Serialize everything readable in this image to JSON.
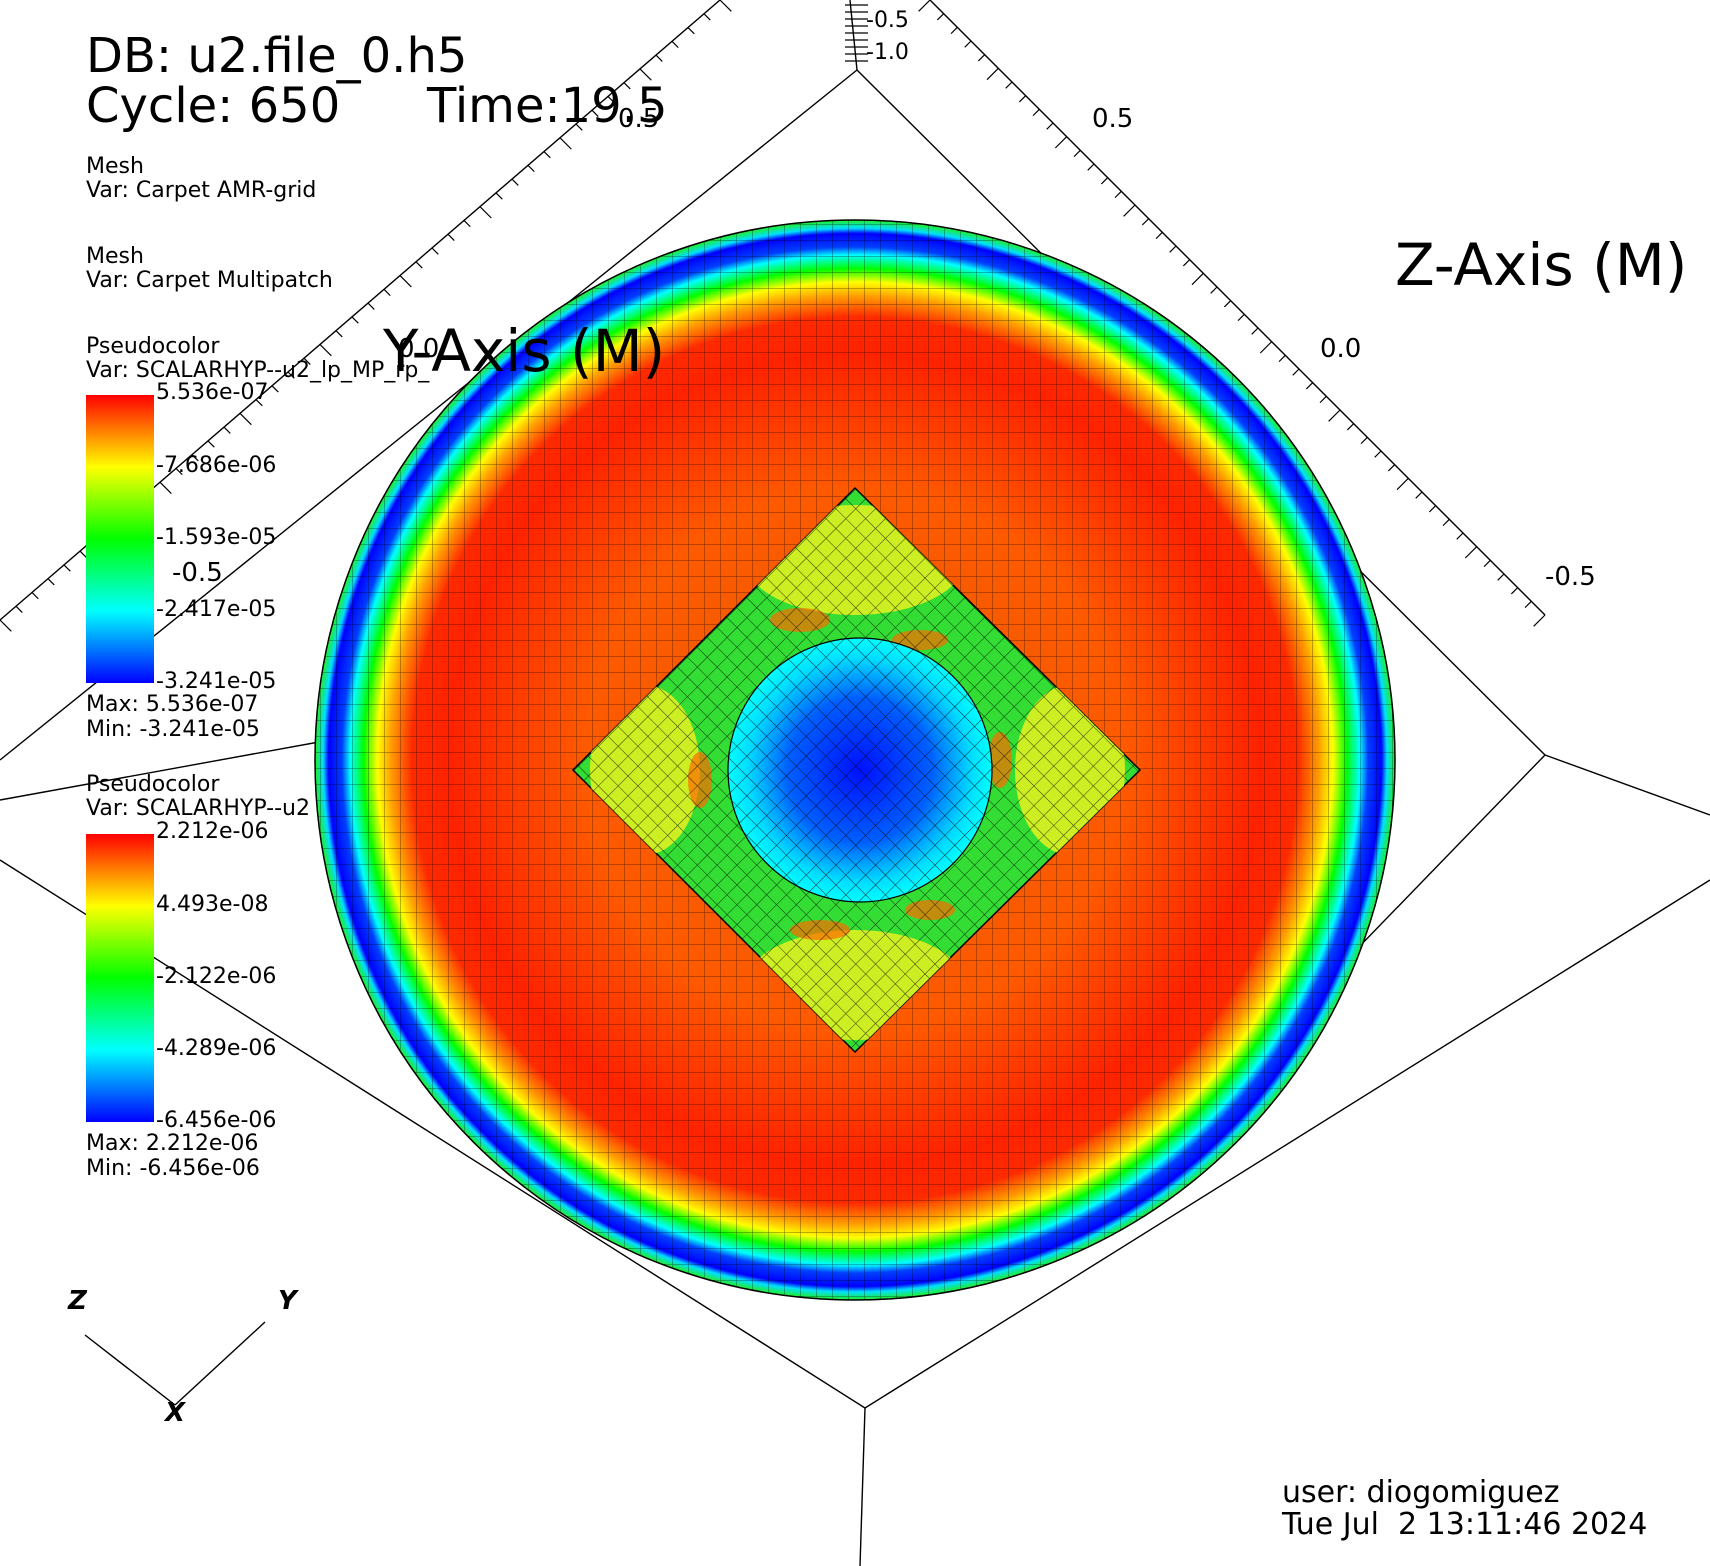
{
  "header": {
    "db_line": "DB: u2.file_0.h5",
    "cycle_line": "Cycle: 650",
    "time_line": "Time:19.5"
  },
  "legend": {
    "mesh1": {
      "type": "Mesh",
      "var": "Var: Carpet AMR-grid"
    },
    "mesh2": {
      "type": "Mesh",
      "var": "Var: Carpet Multipatch"
    },
    "pc1": {
      "type": "Pseudocolor",
      "var": "Var: SCALARHYP--u2_lp_MP_rp_",
      "ticks": [
        "5.536e-07",
        "-7.686e-06",
        "-1.593e-05",
        "-2.417e-05",
        "-3.241e-05"
      ],
      "max": "Max:  5.536e-07",
      "min": "Min: -3.241e-05"
    },
    "pc2": {
      "type": "Pseudocolor",
      "var": "Var: SCALARHYP--u2",
      "ticks": [
        "2.212e-06",
        "4.493e-08",
        "-2.122e-06",
        "-4.289e-06",
        "-6.456e-06"
      ],
      "max": "Max:  2.212e-06",
      "min": "Min: -6.456e-06"
    },
    "colormap": [
      "#ff0000",
      "#ffff00",
      "#00ff00",
      "#00ffff",
      "#0000ff"
    ]
  },
  "axes": {
    "y_title": "Y-Axis (M)",
    "z_title": "Z-Axis (M)",
    "top_ticks": [
      "-0.5",
      "-1.0"
    ],
    "y_ticks": [
      "0.5",
      "0.0",
      "-0.5"
    ],
    "z_ticks": [
      "0.5",
      "0.0",
      "-0.5"
    ]
  },
  "triad": {
    "x": "X",
    "y": "Y",
    "z": "Z"
  },
  "footer": {
    "user": "user: diogomiguez",
    "date": "Tue Jul  2 13:11:46 2024"
  }
}
